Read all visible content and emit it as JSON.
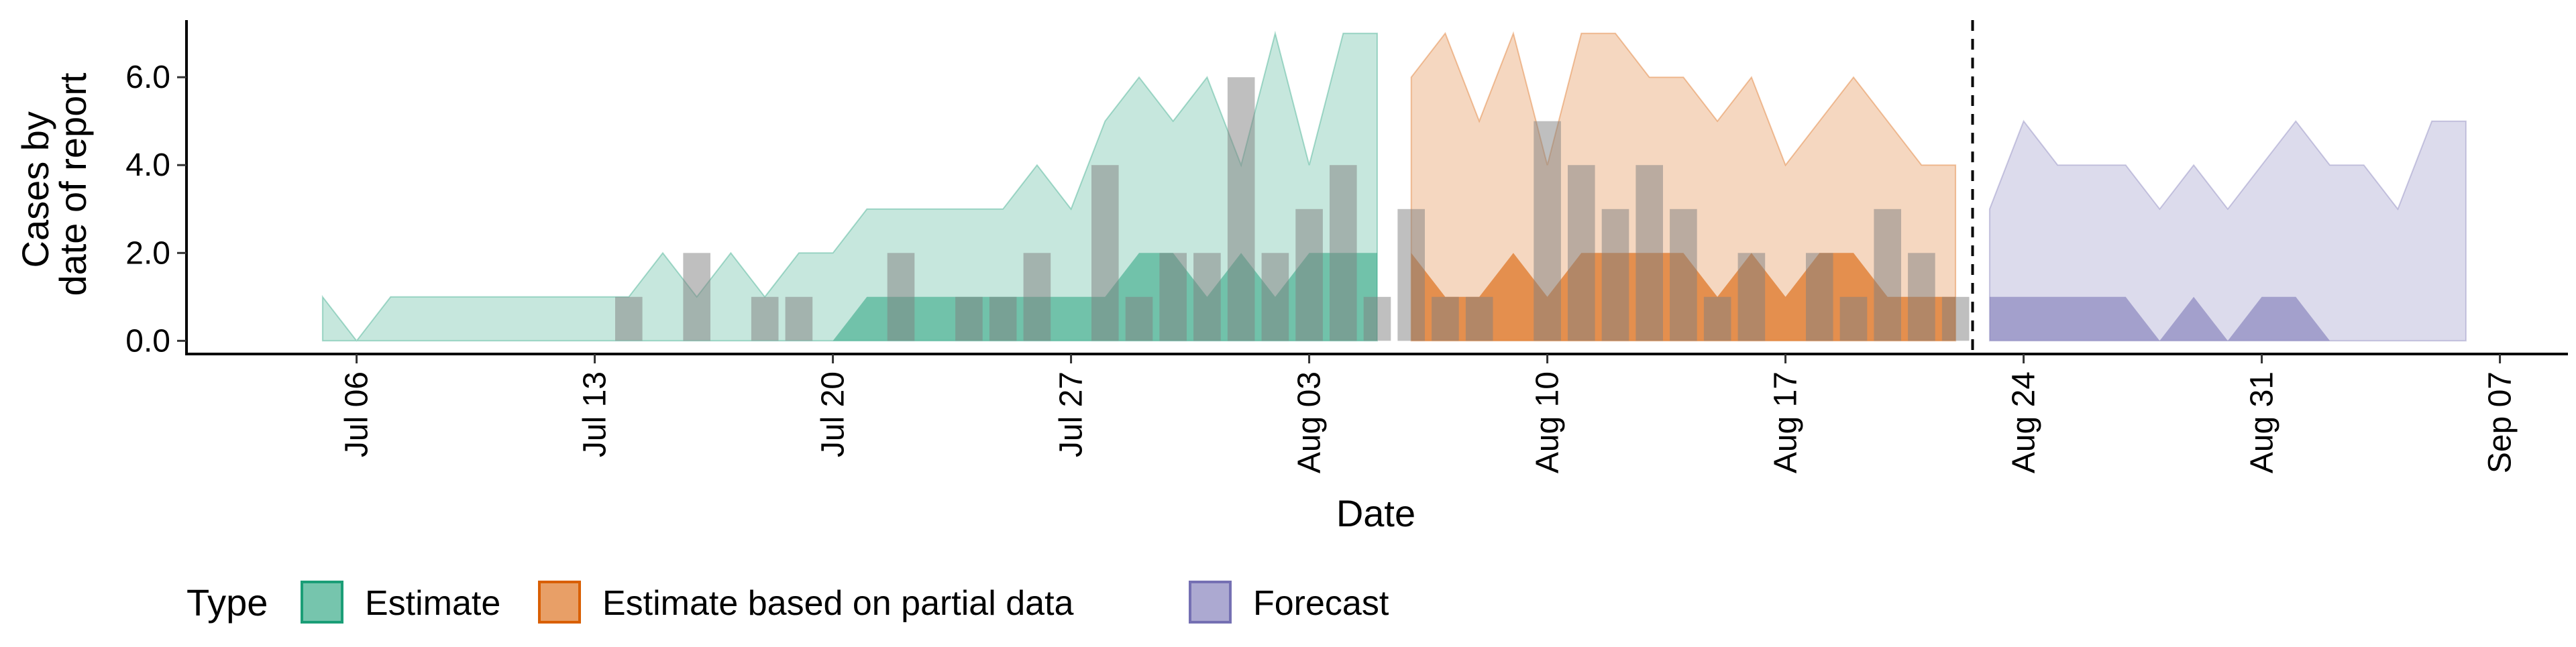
{
  "chart_data": {
    "type": "area",
    "title": "",
    "xlabel": "Date",
    "ylabel_lines": [
      "Cases by",
      "date of report"
    ],
    "xlim": [
      "2020-07-01",
      "2020-09-09"
    ],
    "ylim": [
      -0.3,
      7.3
    ],
    "y_ticks": [
      0,
      2,
      4,
      6
    ],
    "y_tick_labels": [
      "0.0",
      "2.0",
      "4.0",
      "6.0"
    ],
    "x_ticks": [
      "2020-07-06",
      "2020-07-13",
      "2020-07-20",
      "2020-07-27",
      "2020-08-03",
      "2020-08-10",
      "2020-08-17",
      "2020-08-24",
      "2020-08-31",
      "2020-09-07"
    ],
    "x_tick_labels": [
      "Jul 06",
      "Jul 13",
      "Jul 20",
      "Jul 27",
      "Aug 03",
      "Aug 10",
      "Aug 17",
      "Aug 24",
      "Aug 31",
      "Sep 07"
    ],
    "grid": false,
    "legend": {
      "title": "Type",
      "position": "bottom-left"
    },
    "vline": {
      "x": "2020-08-22",
      "style": "dashed"
    },
    "series": [
      {
        "name": "Estimate",
        "color": "#1B9E77",
        "outer_opacity": 0.25,
        "inner_opacity": 0.5,
        "x": [
          "2020-07-05",
          "2020-07-06",
          "2020-07-07",
          "2020-07-08",
          "2020-07-09",
          "2020-07-10",
          "2020-07-11",
          "2020-07-12",
          "2020-07-13",
          "2020-07-14",
          "2020-07-15",
          "2020-07-16",
          "2020-07-17",
          "2020-07-18",
          "2020-07-19",
          "2020-07-20",
          "2020-07-21",
          "2020-07-22",
          "2020-07-23",
          "2020-07-24",
          "2020-07-25",
          "2020-07-26",
          "2020-07-27",
          "2020-07-28",
          "2020-07-29",
          "2020-07-30",
          "2020-07-31",
          "2020-08-01",
          "2020-08-02",
          "2020-08-03",
          "2020-08-04",
          "2020-08-05"
        ],
        "outer_lower": [
          0,
          0,
          0,
          0,
          0,
          0,
          0,
          0,
          0,
          0,
          0,
          0,
          0,
          0,
          0,
          0,
          0,
          0,
          0,
          0,
          0,
          0,
          0,
          0,
          0,
          0,
          0,
          0,
          0,
          0,
          0,
          0
        ],
        "outer_upper": [
          1,
          0,
          1,
          1,
          1,
          1,
          1,
          1,
          1,
          1,
          2,
          1,
          2,
          1,
          2,
          2,
          3,
          3,
          3,
          3,
          3,
          4,
          3,
          5,
          6,
          5,
          6,
          4,
          7,
          4,
          7,
          7
        ],
        "inner_lower": [
          0,
          0,
          0,
          0,
          0,
          0,
          0,
          0,
          0,
          0,
          0,
          0,
          0,
          0,
          0,
          0,
          0,
          0,
          0,
          0,
          0,
          0,
          0,
          0,
          0,
          0,
          0,
          0,
          0,
          0,
          0,
          0
        ],
        "inner_upper": [
          0,
          0,
          0,
          0,
          0,
          0,
          0,
          0,
          0,
          0,
          0,
          0,
          0,
          0,
          0,
          0,
          1,
          1,
          1,
          1,
          1,
          1,
          1,
          1,
          2,
          2,
          1,
          2,
          1,
          2,
          2,
          2
        ]
      },
      {
        "name": "Estimate based on partial data",
        "color": "#D95F02",
        "outer_opacity": 0.25,
        "inner_opacity": 0.6,
        "x": [
          "2020-08-06",
          "2020-08-07",
          "2020-08-08",
          "2020-08-09",
          "2020-08-10",
          "2020-08-11",
          "2020-08-12",
          "2020-08-13",
          "2020-08-14",
          "2020-08-15",
          "2020-08-16",
          "2020-08-17",
          "2020-08-18",
          "2020-08-19",
          "2020-08-20",
          "2020-08-21",
          "2020-08-22"
        ],
        "outer_lower": [
          0,
          0,
          0,
          0,
          0,
          0,
          0,
          0,
          0,
          0,
          0,
          0,
          0,
          0,
          0,
          0,
          0
        ],
        "outer_upper": [
          6,
          7,
          5,
          7,
          4,
          7,
          7,
          6,
          6,
          5,
          6,
          4,
          5,
          6,
          5,
          4,
          4
        ],
        "inner_lower": [
          0,
          0,
          0,
          0,
          0,
          0,
          0,
          0,
          0,
          0,
          0,
          0,
          0,
          0,
          0,
          0,
          0
        ],
        "inner_upper": [
          2,
          1,
          1,
          2,
          1,
          2,
          2,
          2,
          2,
          1,
          2,
          1,
          2,
          2,
          1,
          1,
          1
        ]
      },
      {
        "name": "Forecast",
        "color": "#7570B3",
        "outer_opacity": 0.25,
        "inner_opacity": 0.55,
        "x": [
          "2020-08-23",
          "2020-08-24",
          "2020-08-25",
          "2020-08-26",
          "2020-08-27",
          "2020-08-28",
          "2020-08-29",
          "2020-08-30",
          "2020-08-31",
          "2020-09-01",
          "2020-09-02",
          "2020-09-03",
          "2020-09-04",
          "2020-09-05",
          "2020-09-06"
        ],
        "outer_lower": [
          0,
          0,
          0,
          0,
          0,
          0,
          0,
          0,
          0,
          0,
          0,
          0,
          0,
          0,
          0
        ],
        "outer_upper": [
          3,
          5,
          4,
          4,
          4,
          3,
          4,
          3,
          4,
          5,
          4,
          4,
          3,
          5,
          5
        ],
        "inner_lower": [
          0,
          0,
          0,
          0,
          0,
          0,
          0,
          0,
          0,
          0,
          0,
          0,
          0,
          0,
          0
        ],
        "inner_upper": [
          1,
          1,
          1,
          1,
          1,
          0,
          1,
          0,
          1,
          1,
          0,
          0,
          0,
          0,
          0
        ]
      }
    ],
    "reported_cases": {
      "color": "#808080",
      "opacity": 0.5,
      "x": [
        "2020-07-14",
        "2020-07-16",
        "2020-07-18",
        "2020-07-19",
        "2020-07-22",
        "2020-07-24",
        "2020-07-25",
        "2020-07-26",
        "2020-07-28",
        "2020-07-29",
        "2020-07-30",
        "2020-07-31",
        "2020-08-01",
        "2020-08-02",
        "2020-08-03",
        "2020-08-04",
        "2020-08-05",
        "2020-08-06",
        "2020-08-07",
        "2020-08-08",
        "2020-08-10",
        "2020-08-11",
        "2020-08-12",
        "2020-08-13",
        "2020-08-14",
        "2020-08-15",
        "2020-08-16",
        "2020-08-18",
        "2020-08-19",
        "2020-08-20",
        "2020-08-21",
        "2020-08-22"
      ],
      "values": [
        1,
        2,
        1,
        1,
        2,
        1,
        1,
        2,
        4,
        1,
        2,
        2,
        6,
        2,
        3,
        4,
        1,
        3,
        1,
        1,
        5,
        4,
        3,
        4,
        3,
        1,
        2,
        2,
        1,
        3,
        2,
        1
      ]
    }
  }
}
